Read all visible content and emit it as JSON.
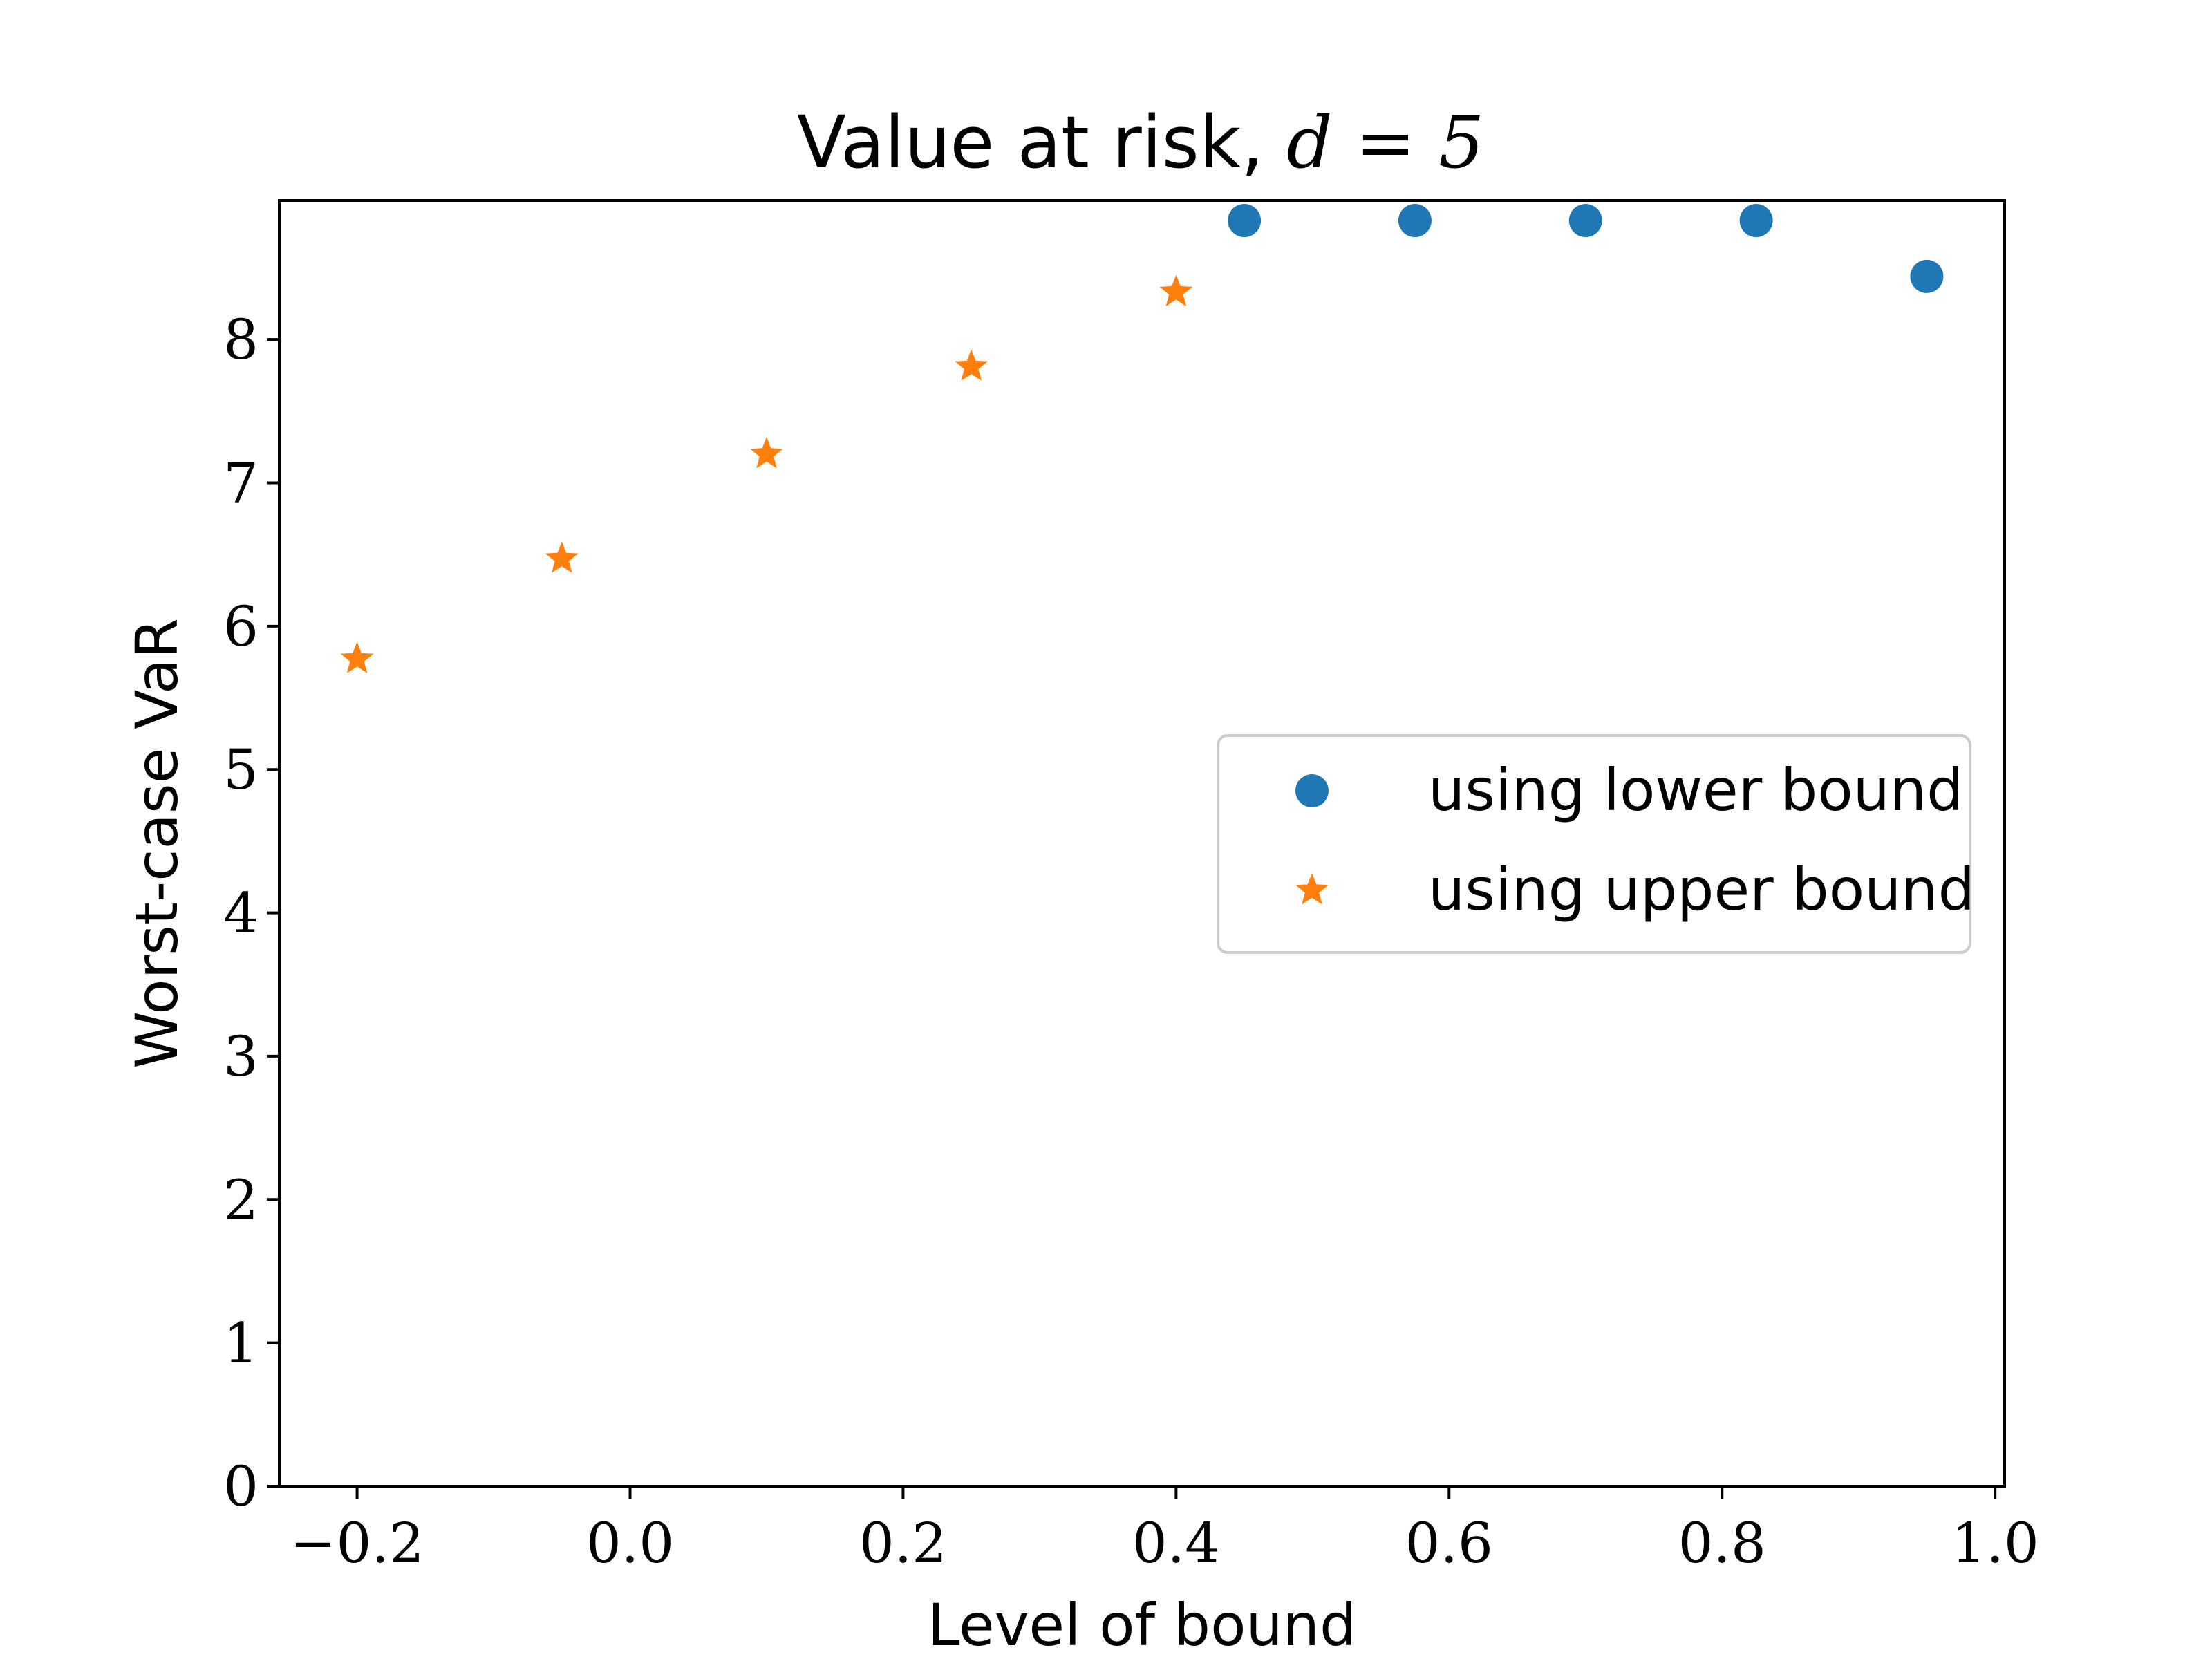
{
  "chart_data": {
    "type": "scatter",
    "title_text": "Value at risk, ",
    "title_math": "d = 5",
    "xlabel": "Level of bound",
    "ylabel": "Worst-case VaR",
    "xlim": [
      -0.257,
      1.007
    ],
    "ylim": [
      0,
      8.97
    ],
    "xticks": [
      -0.2,
      0.0,
      0.2,
      0.4,
      0.6,
      0.8,
      1.0
    ],
    "xtick_labels": [
      "−0.2",
      "0.0",
      "0.2",
      "0.4",
      "0.6",
      "0.8",
      "1.0"
    ],
    "yticks": [
      0,
      1,
      2,
      3,
      4,
      5,
      6,
      7,
      8
    ],
    "ytick_labels": [
      "0",
      "1",
      "2",
      "3",
      "4",
      "5",
      "6",
      "7",
      "8"
    ],
    "grid": false,
    "legend_position": "center-right",
    "series": [
      {
        "name": "using lower bound",
        "marker": "circle",
        "color": "#1f77b4",
        "points": [
          {
            "x": 0.45,
            "y": 8.83
          },
          {
            "x": 0.575,
            "y": 8.83
          },
          {
            "x": 0.7,
            "y": 8.83
          },
          {
            "x": 0.825,
            "y": 8.83
          },
          {
            "x": 0.95,
            "y": 8.44
          }
        ]
      },
      {
        "name": "using upper bound",
        "marker": "star",
        "color": "#ff7f0e",
        "points": [
          {
            "x": -0.2,
            "y": 5.77
          },
          {
            "x": -0.05,
            "y": 6.47
          },
          {
            "x": 0.1,
            "y": 7.2
          },
          {
            "x": 0.25,
            "y": 7.81
          },
          {
            "x": 0.4,
            "y": 8.33
          }
        ]
      }
    ]
  }
}
